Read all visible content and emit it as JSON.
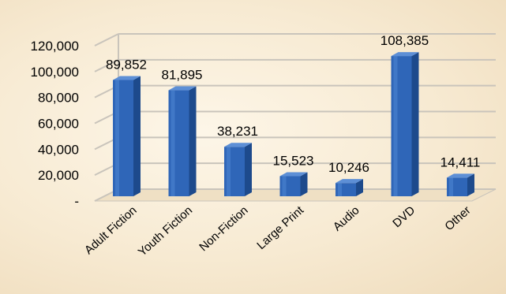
{
  "chart_data": {
    "type": "bar",
    "style": "3d-column",
    "categories": [
      "Adult Fiction",
      "Youth Fiction",
      "Non-Fiction",
      "Large Print",
      "Audio",
      "DVD",
      "Other"
    ],
    "values": [
      89852,
      81895,
      38231,
      15523,
      10246,
      108385,
      14411
    ],
    "value_labels": [
      "89,852",
      "81,895",
      "38,231",
      "15,523",
      "10,246",
      "108,385",
      "14,411"
    ],
    "y_ticks": [
      0,
      20000,
      40000,
      60000,
      80000,
      100000,
      120000
    ],
    "y_tick_labels": [
      "-",
      "20,000",
      "40,000",
      "60,000",
      "80,000",
      "100,000",
      "120,000"
    ],
    "ylim": [
      0,
      120000
    ],
    "title": "",
    "xlabel": "",
    "ylabel": "",
    "grid": true,
    "legend": "none",
    "colors": {
      "bar_front": "#2f66b8",
      "bar_side": "#1d4a8c",
      "bar_top": "#5d8fd6",
      "grid": "#c9c4bb",
      "background": "#f7ead2"
    }
  }
}
